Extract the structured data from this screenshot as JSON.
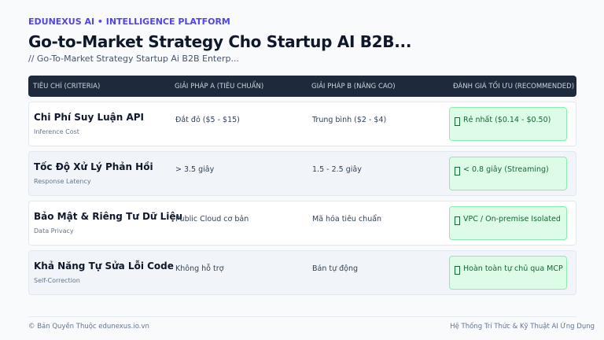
{
  "header": {
    "kicker": "EDUNEXUS AI • INTELLIGENCE PLATFORM",
    "title": "Go-to-Market Strategy Cho Startup AI B2B...",
    "subtitle": "// Go-To-Market Strategy Startup Ai B2B Enterp..."
  },
  "table": {
    "headers": [
      "TIÊU CHÍ (CRITERIA)",
      "GIẢI PHÁP A (TIÊU CHUẨN)",
      "GIẢI PHÁP B (NÂNG CAO)",
      "ĐÁNH GIÁ TỐI ƯU (RECOMMENDED)"
    ],
    "rows": [
      [
        "Chi Phí Suy Luận API",
        "Inference Cost",
        "Đắt đỏ ($5 - $15)",
        "Trung bình ($2 - $4)",
        "Rẻ nhất ($0.14 - $0.50)"
      ],
      [
        "Tốc Độ Xử Lý Phản Hồi",
        "Response Latency",
        "> 3.5 giây",
        "1.5 - 2.5 giây",
        "< 0.8 giây (Streaming)"
      ],
      [
        "Bảo Mật & Riêng Tư Dữ Liệu",
        "Data Privacy",
        "Public Cloud cơ bản",
        "Mã hóa tiêu chuẩn",
        "VPC / On-premise Isolated"
      ],
      [
        "Khả Năng Tự Sửa Lỗi Code",
        "Self-Correction",
        "Không hỗ trợ",
        "Bán tự động",
        "Hoàn toàn tự chủ qua MCP"
      ]
    ]
  },
  "footer": {
    "left": "© Bản Quyền Thuộc edunexus.io.vn",
    "right": "Hệ Thống Tri Thức & Kỹ Thuật AI Ứng Dụng"
  }
}
